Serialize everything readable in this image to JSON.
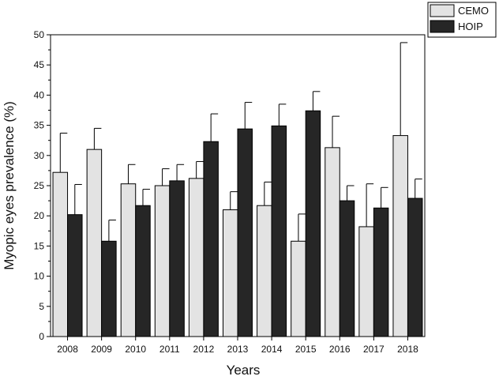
{
  "chart_data": {
    "type": "bar",
    "title": "",
    "xlabel": "Years",
    "ylabel": "Myopic eyes prevalence (%)",
    "ylim": [
      0,
      50
    ],
    "yticks": [
      0,
      5,
      10,
      15,
      20,
      25,
      30,
      35,
      40,
      45,
      50
    ],
    "categories": [
      "2008",
      "2009",
      "2010",
      "2011",
      "2012",
      "2013",
      "2014",
      "2015",
      "2016",
      "2017",
      "2018"
    ],
    "series": [
      {
        "name": "CEMO",
        "color": "#e3e3e3",
        "values": [
          27.2,
          31.0,
          25.3,
          25.0,
          26.2,
          21.0,
          21.7,
          15.8,
          31.3,
          18.2,
          33.3
        ],
        "error": [
          6.5,
          3.5,
          3.2,
          2.8,
          2.8,
          3.0,
          3.9,
          4.5,
          5.2,
          7.1,
          15.4
        ]
      },
      {
        "name": "HOIP",
        "color": "#262626",
        "values": [
          20.2,
          15.8,
          21.7,
          25.8,
          32.3,
          34.4,
          34.9,
          37.4,
          22.5,
          21.3,
          22.9
        ],
        "error": [
          5.0,
          3.5,
          2.7,
          2.7,
          4.6,
          4.4,
          3.6,
          3.2,
          2.5,
          3.4,
          3.2
        ]
      }
    ],
    "legend_position": "top-right",
    "grid": false
  }
}
